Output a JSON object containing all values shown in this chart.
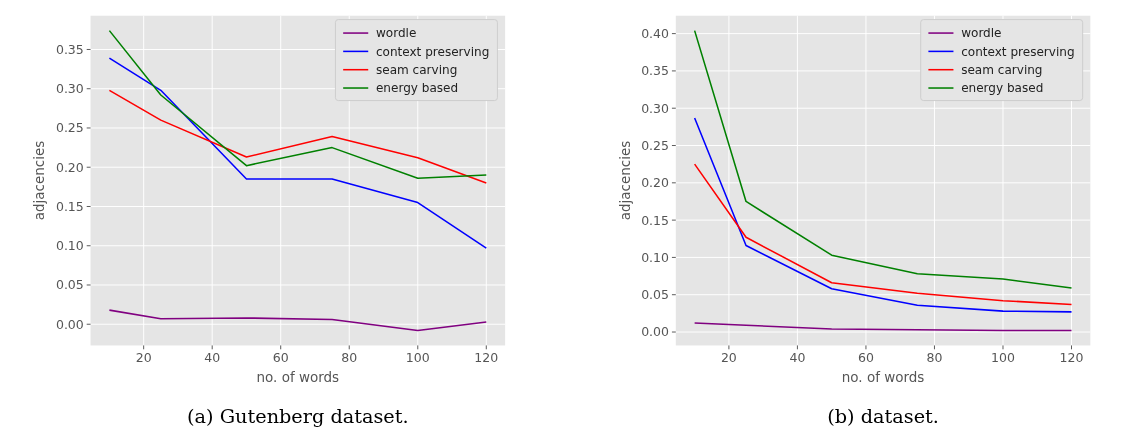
{
  "chart_data": [
    {
      "type": "line",
      "xlabel": "no. of words",
      "ylabel": "adjacencies",
      "annotations": [
        "(a) Gutenberg dataset."
      ],
      "x": [
        10,
        25,
        50,
        75,
        100,
        120
      ],
      "xlim": [
        4.5,
        125.5
      ],
      "xticks": [
        20,
        40,
        60,
        80,
        100,
        120
      ],
      "ylim": [
        -0.027,
        0.393
      ],
      "yticks": [
        {
          "value": 0,
          "label": "0.00"
        },
        {
          "value": 0.05,
          "label": "0.05"
        },
        {
          "value": 0.1,
          "label": "0.10"
        },
        {
          "value": 0.15,
          "label": "0.15"
        },
        {
          "value": 0.2,
          "label": "0.20"
        },
        {
          "value": 0.25,
          "label": "0.25"
        },
        {
          "value": 0.3,
          "label": "0.30"
        },
        {
          "value": 0.35,
          "label": "0.35"
        }
      ],
      "grid": true,
      "legend": "top right",
      "line_style": "solid",
      "series": [
        {
          "name": "wordle",
          "color": "#800080",
          "values": [
            0.018,
            0.007,
            0.008,
            0.006,
            -0.008,
            0.003
          ]
        },
        {
          "name": "context preserving",
          "color": "#0000ff",
          "values": [
            0.339,
            0.298,
            0.185,
            0.185,
            0.155,
            0.097
          ]
        },
        {
          "name": "seam carving",
          "color": "#ff0000",
          "values": [
            0.298,
            0.26,
            0.213,
            0.239,
            0.212,
            0.18
          ]
        },
        {
          "name": "energy based",
          "color": "#008000",
          "values": [
            0.374,
            0.292,
            0.202,
            0.225,
            0.186,
            0.19
          ]
        }
      ]
    },
    {
      "type": "line",
      "xlabel": "no. of words",
      "ylabel": "adjacencies",
      "annotations": [
        "(b) dataset."
      ],
      "x": [
        10,
        25,
        50,
        75,
        100,
        120
      ],
      "xlim": [
        4.5,
        125.5
      ],
      "xticks": [
        20,
        40,
        60,
        80,
        100,
        120
      ],
      "ylim": [
        -0.018,
        0.424
      ],
      "yticks": [
        {
          "value": 0,
          "label": "0.00"
        },
        {
          "value": 0.05,
          "label": "0.05"
        },
        {
          "value": 0.1,
          "label": "0.10"
        },
        {
          "value": 0.15,
          "label": "0.15"
        },
        {
          "value": 0.2,
          "label": "0.20"
        },
        {
          "value": 0.25,
          "label": "0.25"
        },
        {
          "value": 0.3,
          "label": "0.30"
        },
        {
          "value": 0.35,
          "label": "0.35"
        },
        {
          "value": 0.4,
          "label": "0.40"
        }
      ],
      "grid": true,
      "legend": "top right",
      "line_style": "solid",
      "series": [
        {
          "name": "wordle",
          "color": "#800080",
          "values": [
            0.012,
            0.009,
            0.004,
            0.003,
            0.002,
            0.002
          ]
        },
        {
          "name": "context preserving",
          "color": "#0000ff",
          "values": [
            0.287,
            0.116,
            0.058,
            0.036,
            0.028,
            0.027
          ]
        },
        {
          "name": "seam carving",
          "color": "#ff0000",
          "values": [
            0.225,
            0.127,
            0.066,
            0.052,
            0.042,
            0.037
          ]
        },
        {
          "name": "energy based",
          "color": "#008000",
          "values": [
            0.404,
            0.175,
            0.103,
            0.078,
            0.071,
            0.059
          ]
        }
      ]
    }
  ]
}
